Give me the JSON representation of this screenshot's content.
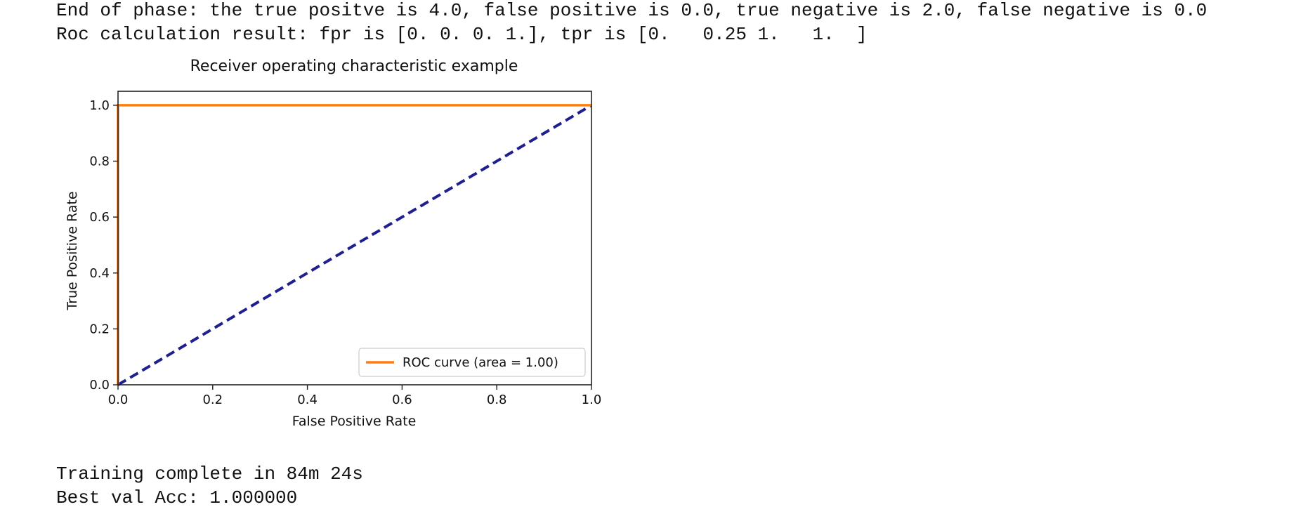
{
  "output": {
    "line1": "End of phase: the true positve is 4.0, false positive is 0.0, true negative is 2.0, false negative is 0.0",
    "line2": "Roc calculation result: fpr is [0. 0. 0. 1.], tpr is [0.   0.25 1.   1.  ]",
    "line3": "Training complete in 84m 24s",
    "line4": "Best val Acc: 1.000000"
  },
  "chart_data": {
    "type": "line",
    "title": "Receiver operating characteristic example",
    "xlabel": "False Positive Rate",
    "ylabel": "True Positive Rate",
    "xlim": [
      0,
      1
    ],
    "ylim": [
      0,
      1.05
    ],
    "xticks": [
      0.0,
      0.2,
      0.4,
      0.6,
      0.8,
      1.0
    ],
    "yticks": [
      0.0,
      0.2,
      0.4,
      0.6,
      0.8,
      1.0
    ],
    "xtick_labels": [
      "0.0",
      "0.2",
      "0.4",
      "0.6",
      "0.8",
      "1.0"
    ],
    "ytick_labels": [
      "0.0",
      "0.2",
      "0.4",
      "0.6",
      "0.8",
      "1.0"
    ],
    "grid": false,
    "legend_position": "bottom-right",
    "series": [
      {
        "name": "ROC curve (area = 1.00)",
        "x": [
          0,
          0,
          0,
          1
        ],
        "y": [
          0,
          0.25,
          1,
          1
        ],
        "color": "#ff7f0e",
        "style": "solid"
      },
      {
        "x": [
          0,
          1
        ],
        "y": [
          0,
          1
        ],
        "color": "#1f1f8f",
        "style": "dashed"
      }
    ]
  }
}
